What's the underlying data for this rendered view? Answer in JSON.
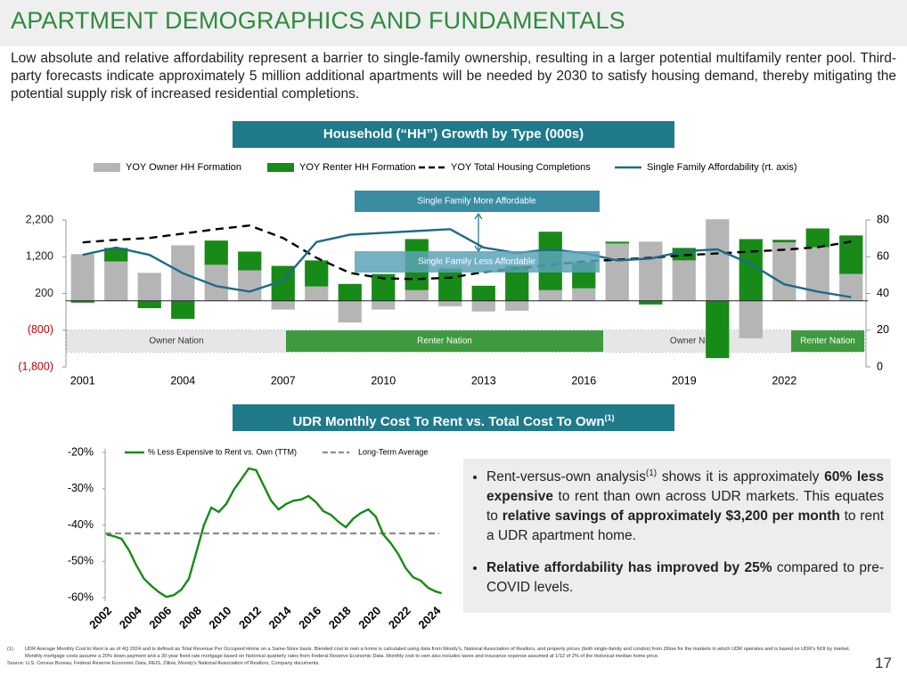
{
  "header": {
    "title": "APARTMENT DEMOGRAPHICS AND FUNDAMENTALS"
  },
  "intro": "Low absolute and relative affordability represent a barrier to single-family ownership, resulting in a larger potential multifamily renter pool. Third-party forecasts indicate approximately 5 million additional apartments will be needed by 2030 to satisfy housing demand, thereby mitigating the potential supply risk of increased residential completions.",
  "chart_data": [
    {
      "type": "bar",
      "title": "Household (“HH”) Growth by Type (000s)",
      "x": [
        2001,
        2002,
        2003,
        2004,
        2005,
        2006,
        2007,
        2008,
        2009,
        2010,
        2011,
        2012,
        2013,
        2014,
        2015,
        2016,
        2017,
        2018,
        2019,
        2020,
        2021,
        2022,
        2023,
        2024
      ],
      "xlim": [
        2000.5,
        2024.5
      ],
      "xticks": [
        2001,
        2004,
        2007,
        2010,
        2013,
        2016,
        2019,
        2022
      ],
      "ylim": [
        -1800,
        2200
      ],
      "yticks": [
        {
          "value": 2200,
          "label": "2,200"
        },
        {
          "value": 1200,
          "label": "1,200"
        },
        200,
        {
          "value": -800,
          "label": "(800)"
        },
        {
          "value": -1800,
          "label": "(1,800)"
        }
      ],
      "y2lim": [
        0,
        80
      ],
      "y2ticks": [
        0,
        20,
        40,
        60,
        80
      ],
      "series": [
        {
          "name": "YOY Owner HH Formation",
          "type": "bar",
          "color": "#b5b5b5",
          "values": [
            1270,
            1070,
            760,
            1510,
            980,
            830,
            -240,
            390,
            -590,
            -240,
            290,
            -150,
            -290,
            -270,
            290,
            340,
            1560,
            1610,
            1100,
            2220,
            -1020,
            1590,
            1460,
            730
          ]
        },
        {
          "name": "YOY Renter HH Formation",
          "type": "bar",
          "color": "#178a17",
          "values": [
            -50,
            370,
            -200,
            -490,
            660,
            510,
            950,
            710,
            460,
            730,
            1390,
            880,
            410,
            950,
            1590,
            710,
            50,
            -100,
            340,
            -1560,
            1680,
            70,
            510,
            1050
          ]
        },
        {
          "name": "YOY Total Housing Completions",
          "type": "line",
          "dash": true,
          "color": "#000000",
          "values": [
            1590,
            1660,
            1710,
            1830,
            1950,
            2050,
            1710,
            1170,
            760,
            610,
            590,
            630,
            780,
            880,
            980,
            1070,
            1120,
            1170,
            1240,
            1290,
            1340,
            1390,
            1460,
            1610
          ]
        },
        {
          "name": "Single Family Affordability (rt. axis)",
          "type": "line",
          "axis": "y2",
          "color": "#1f6a8a",
          "values": [
            61,
            65,
            61,
            51,
            44,
            41,
            47,
            68,
            72,
            73,
            74,
            75,
            65,
            62,
            64,
            62,
            58,
            59,
            63,
            64,
            56,
            45,
            41,
            38
          ]
        }
      ],
      "annotations": [
        "Single Family More Affordable",
        "Single Family Less Affordable"
      ],
      "regions": [
        {
          "label": "Owner Nation",
          "color": "#e6e6e6",
          "text_color": "#333333"
        },
        {
          "label": "Renter Nation",
          "color": "#3e9a3e",
          "text_color": "#ffffff"
        },
        {
          "label": "Owner Nation",
          "color": "#e6e6e6",
          "text_color": "#333333"
        },
        {
          "label": "Renter Nation",
          "color": "#3e9a3e",
          "text_color": "#ffffff"
        }
      ]
    },
    {
      "type": "line",
      "title": "UDR Monthly Cost To Rent vs. Total Cost To Own",
      "title_note": "(1)",
      "x": [
        2002,
        2002.5,
        2003,
        2003.5,
        2004,
        2004.5,
        2005,
        2005.5,
        2006,
        2006.5,
        2007,
        2007.5,
        2008,
        2008.5,
        2009,
        2009.5,
        2010,
        2010.5,
        2011,
        2011.5,
        2012,
        2012.5,
        2013,
        2013.5,
        2014,
        2014.5,
        2015,
        2015.5,
        2016,
        2016.5,
        2017,
        2017.5,
        2018,
        2018.5,
        2019,
        2019.5,
        2020,
        2020.5,
        2021,
        2021.5,
        2022,
        2022.5,
        2023,
        2023.5,
        2024,
        2024.4
      ],
      "xlim": [
        2001.9,
        2024.6
      ],
      "xticks": [
        2002,
        2004,
        2006,
        2008,
        2010,
        2012,
        2014,
        2016,
        2018,
        2020,
        2022,
        2024
      ],
      "ylim": [
        -60,
        -20
      ],
      "yticks": [
        {
          "value": -20,
          "label": "-20%"
        },
        {
          "value": -30,
          "label": "-30%"
        },
        {
          "value": -40,
          "label": "-40%"
        },
        {
          "value": -50,
          "label": "-50%"
        },
        {
          "value": -60,
          "label": "-60%"
        }
      ],
      "series": [
        {
          "name": "% Less Expensive to Rent vs. Own (TTM)",
          "color": "#178a17",
          "values": [
            -42.6,
            -43.1,
            -43.8,
            -47.0,
            -51.2,
            -54.8,
            -56.8,
            -58.5,
            -59.8,
            -59.3,
            -57.8,
            -54.8,
            -47.5,
            -40.1,
            -35.2,
            -36.4,
            -34.2,
            -30.3,
            -27.4,
            -24.4,
            -24.9,
            -29.1,
            -33.3,
            -35.7,
            -34.2,
            -33.3,
            -33.0,
            -32.0,
            -33.7,
            -36.2,
            -37.2,
            -39.1,
            -40.6,
            -38.2,
            -36.7,
            -35.7,
            -37.7,
            -42.6,
            -45.0,
            -48.0,
            -51.9,
            -54.4,
            -55.3,
            -57.3,
            -58.3,
            -58.8
          ]
        }
      ],
      "reference_lines": [
        {
          "name": "Long-Term Average",
          "value": -42.3,
          "color": "#8c8c8c",
          "dash": true
        }
      ]
    }
  ],
  "callout": {
    "bullets": [
      [
        {
          "text": "Rent-versus-own analysis"
        },
        {
          "text": "(1)",
          "sup": true
        },
        {
          "text": " shows it is approximately "
        },
        {
          "text": "60% less expensive",
          "bold": true
        },
        {
          "text": " to rent than own across UDR markets. This equates to "
        },
        {
          "text": "relative savings of approximately $3,200 per month",
          "bold": true
        },
        {
          "text": " to rent a UDR apartment home."
        }
      ],
      [
        {
          "text": "Relative affordability has improved by 25%",
          "bold": true
        },
        {
          "text": " compared to pre-COVID levels."
        }
      ]
    ]
  },
  "footnotes": {
    "marker": "(1)",
    "text": "UDR Average Monthly Cost to Rent is as of 4Q 2024 and is defined as Total Revenue Per Occupied Home on a Same-Store basis. Blended cost to own a home is calculated using data from Moody's, National Association of Realtors, and property prices (both single-family and condos) from Zillow for the markets in which UDR operates and is based on UDR's NOI by market. Monthly mortgage costs assume a 20% down payment and a 30-year fixed rate mortgage based on historical quarterly rates from Federal Reserve Economic Data. Monthly cost to own also includes taxes and insurance expense assumed at 1/12 of 2% of the historical median home price.",
    "source": "Source: U.S. Census Bureau, Federal Reserve Economic Data, REIS, Zillow, Moody's National Association of Realtors, Company documents."
  },
  "page_number": "17"
}
